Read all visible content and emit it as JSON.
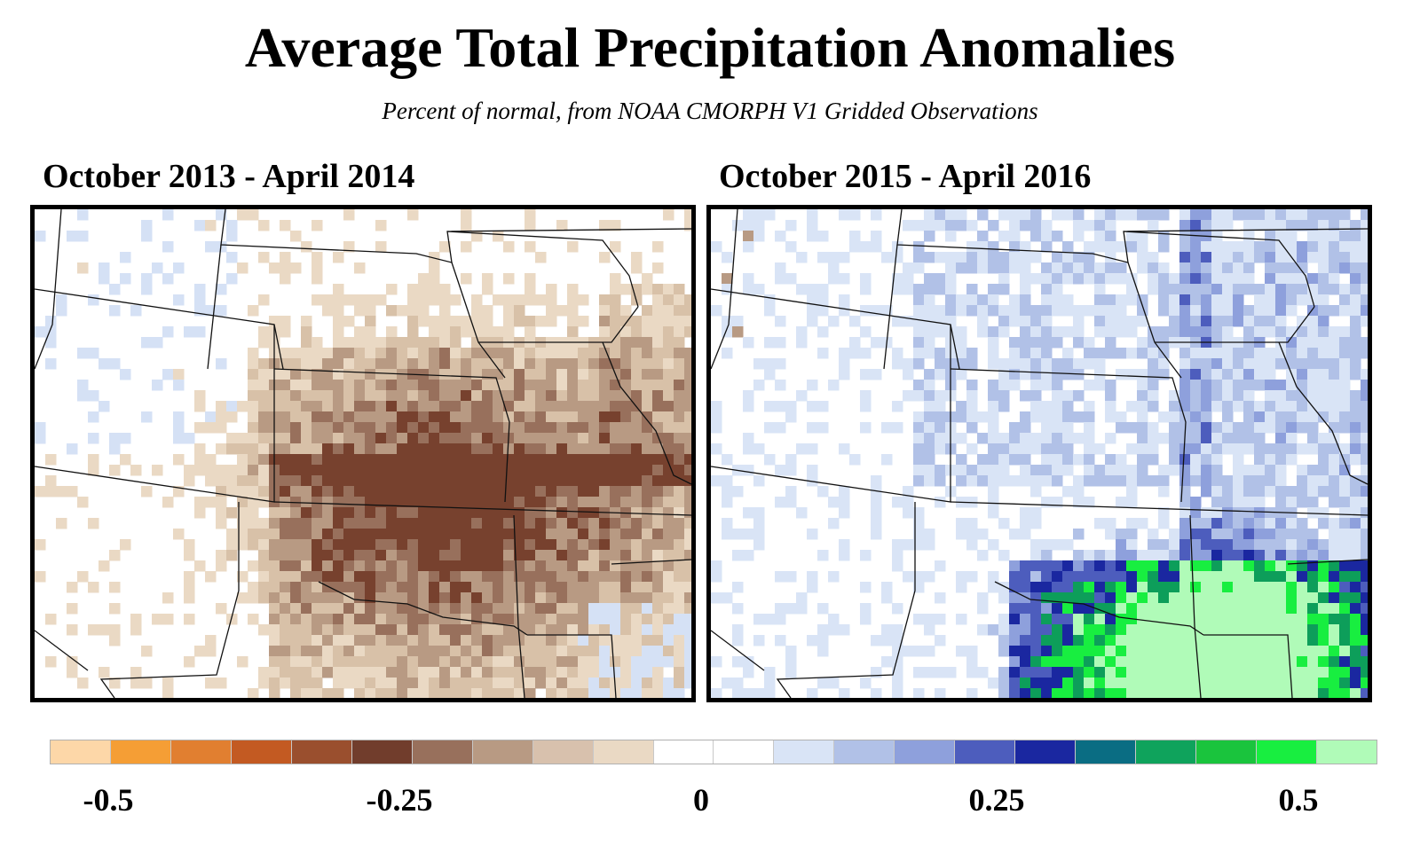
{
  "title": "Average Total Precipitation Anomalies",
  "subtitle": "Percent of  normal, from NOAA CMORPH V1 Gridded Observations",
  "panels": [
    {
      "label": "October 2013 - April 2014",
      "tone": "dry",
      "palette": [
        "#ffffff",
        "#ffffff",
        "#ead9c4",
        "#d8c1a8",
        "#b89a83",
        "#98705c",
        "#77412e",
        "#d5e1f5",
        "#8fa6dd",
        "#3d4fb4",
        "#0a9e5c"
      ]
    },
    {
      "label": "October 2015 - April 2016",
      "tone": "wet",
      "palette": [
        "#ffffff",
        "#d9e4f6",
        "#b1c1e7",
        "#8ea0dc",
        "#4d5dbd",
        "#1a27a0",
        "#0d9e5a",
        "#18ee40",
        "#b0fbb8",
        "#ead9c4",
        "#b89a83"
      ]
    }
  ],
  "colorbar": {
    "colors": [
      "#fdd7a8",
      "#f59e35",
      "#e17f30",
      "#c35a22",
      "#9a4f2e",
      "#713d2c",
      "#98705c",
      "#b89a83",
      "#d8c1ad",
      "#ead9c4",
      "#ffffff",
      "#ffffff",
      "#d9e4f6",
      "#b1c1e7",
      "#8ea0dc",
      "#4d5dbd",
      "#1a27a0",
      "#0a6d83",
      "#0fa35c",
      "#1ac43d",
      "#18ee40",
      "#b0fbb8"
    ],
    "ticks": [
      {
        "label": "-0.5",
        "value": -0.5
      },
      {
        "label": "-0.25",
        "value": -0.25
      },
      {
        "label": "0",
        "value": 0
      },
      {
        "label": "0.25",
        "value": 0.25
      },
      {
        "label": "0.5",
        "value": 0.5
      }
    ],
    "range": [
      -0.5,
      0.5
    ]
  }
}
